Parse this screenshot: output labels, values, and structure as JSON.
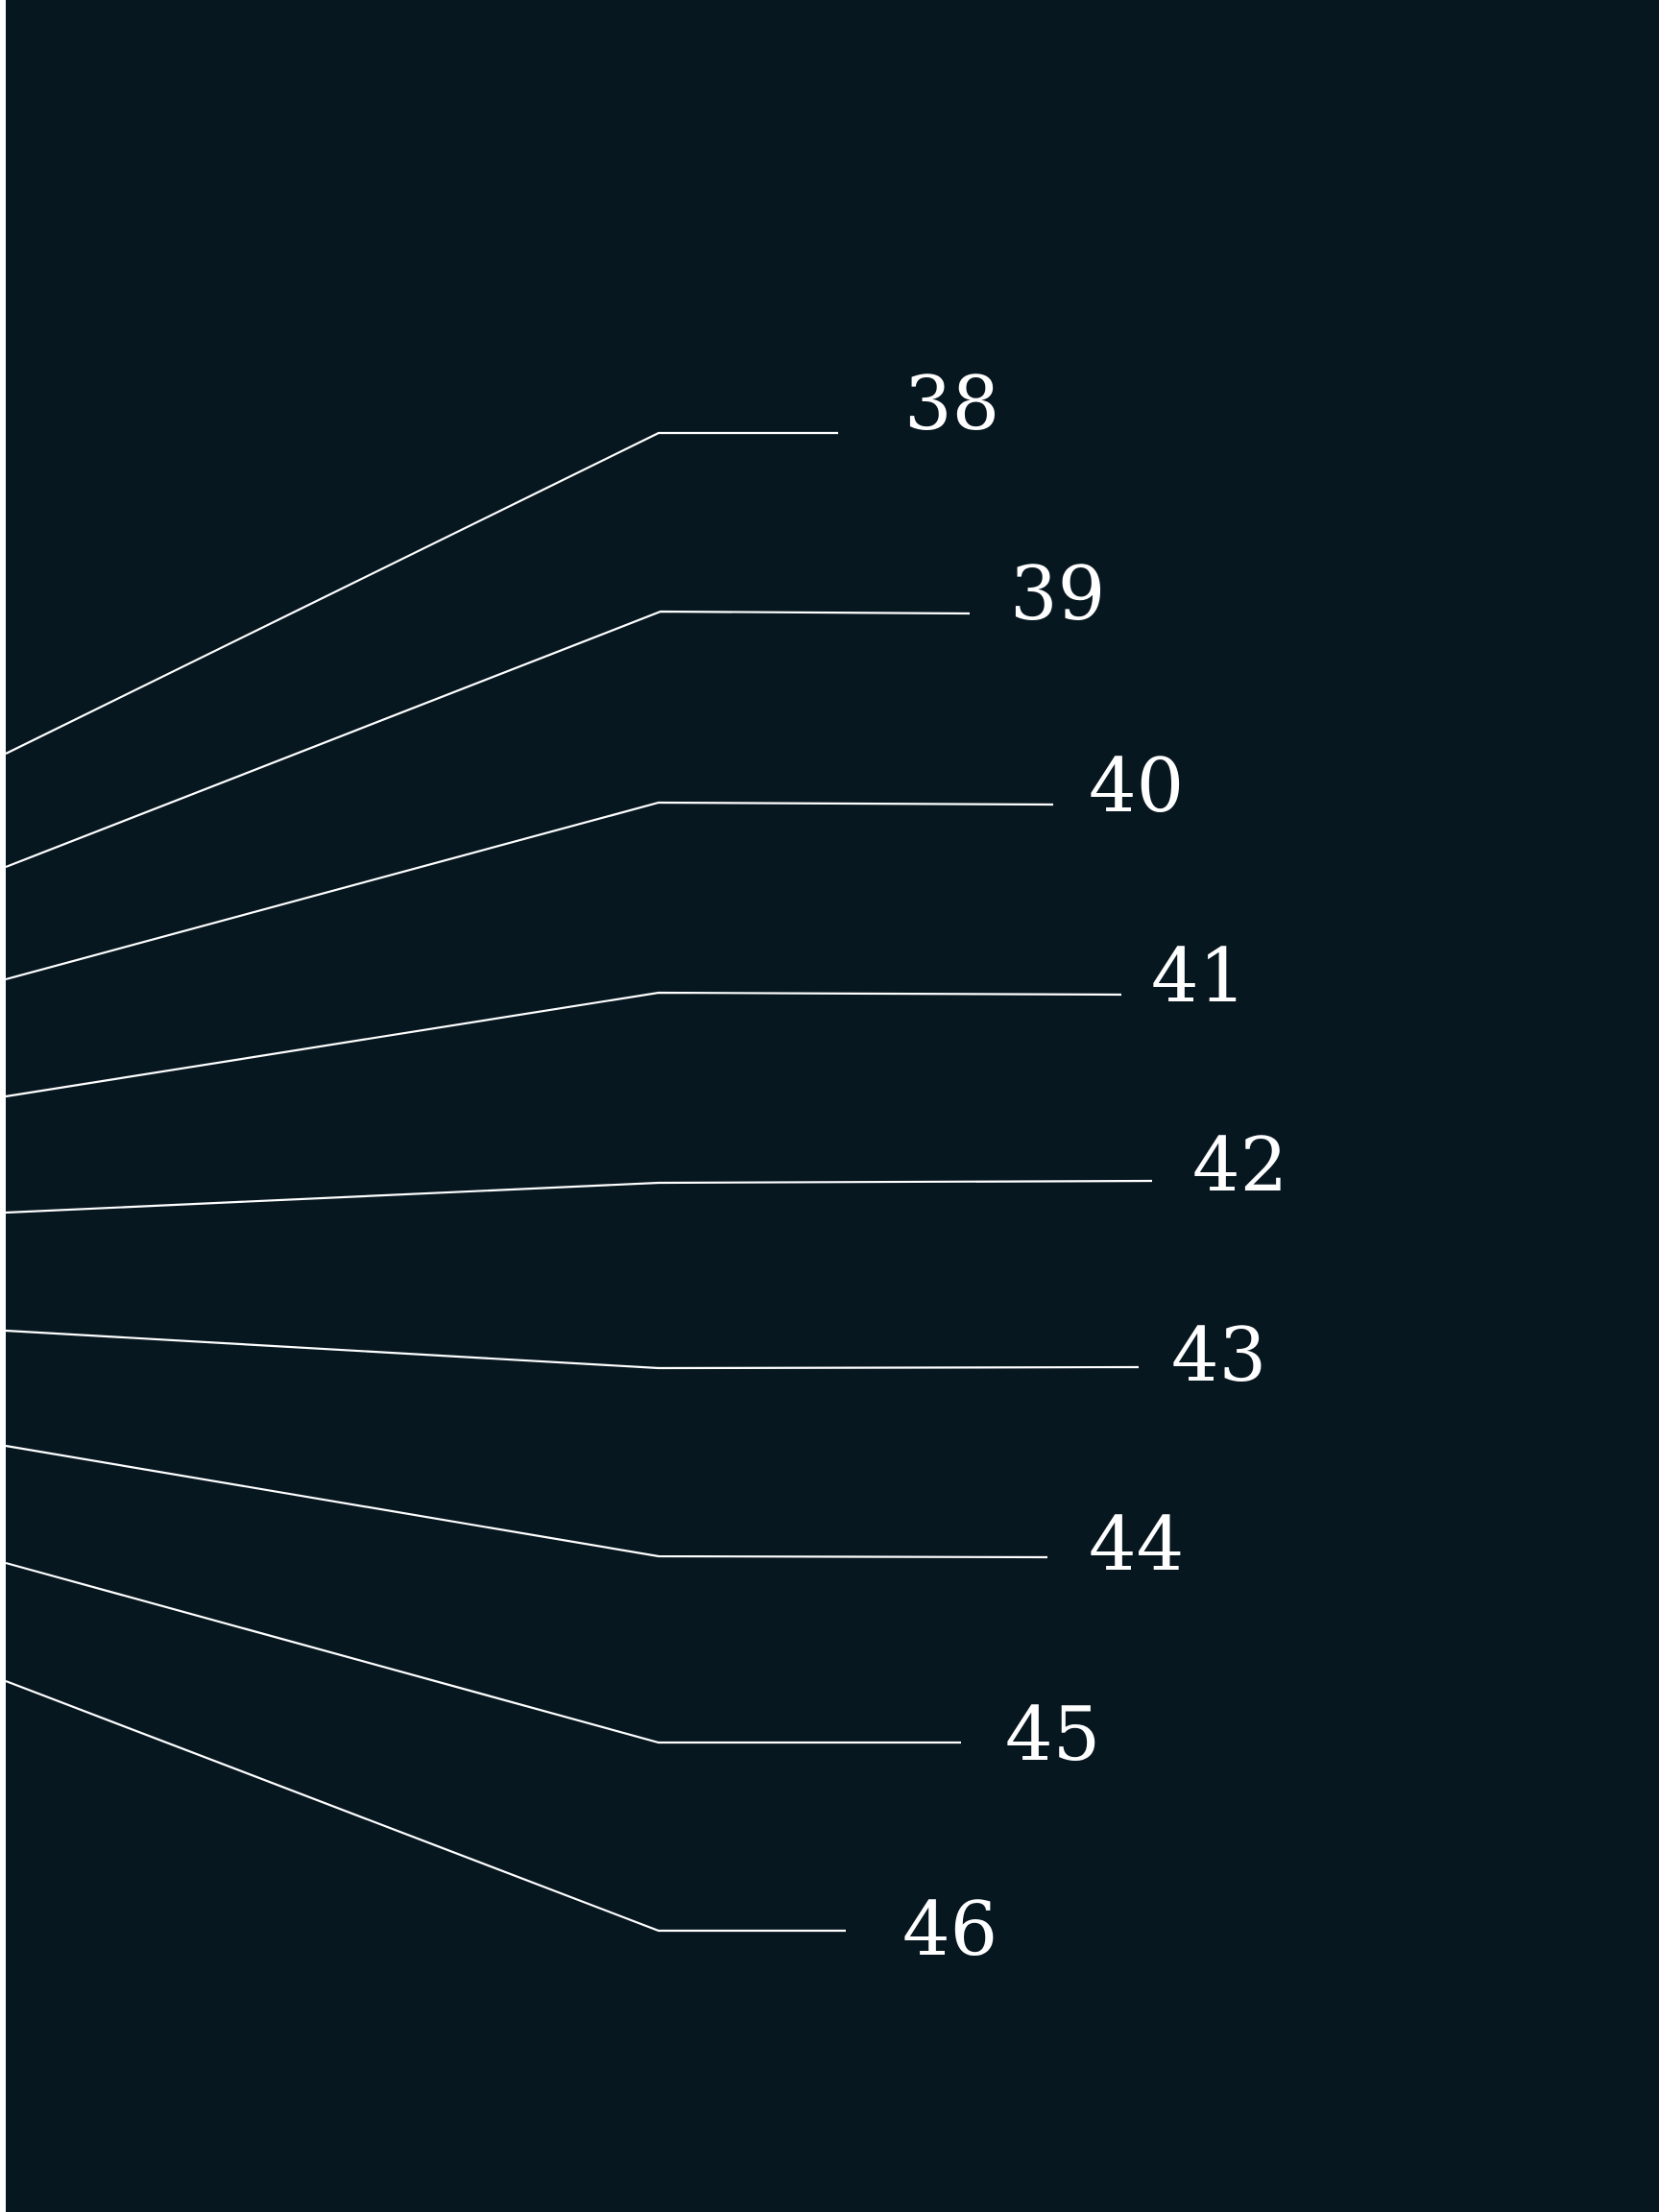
{
  "colors": {
    "background": "#071720",
    "line": "#ffffff",
    "text": "#ffffff",
    "edge": "#ffffff"
  },
  "callouts": [
    {
      "label": "38"
    },
    {
      "label": "39"
    },
    {
      "label": "40"
    },
    {
      "label": "41"
    },
    {
      "label": "42"
    },
    {
      "label": "43"
    },
    {
      "label": "44"
    },
    {
      "label": "45"
    },
    {
      "label": "46"
    }
  ]
}
